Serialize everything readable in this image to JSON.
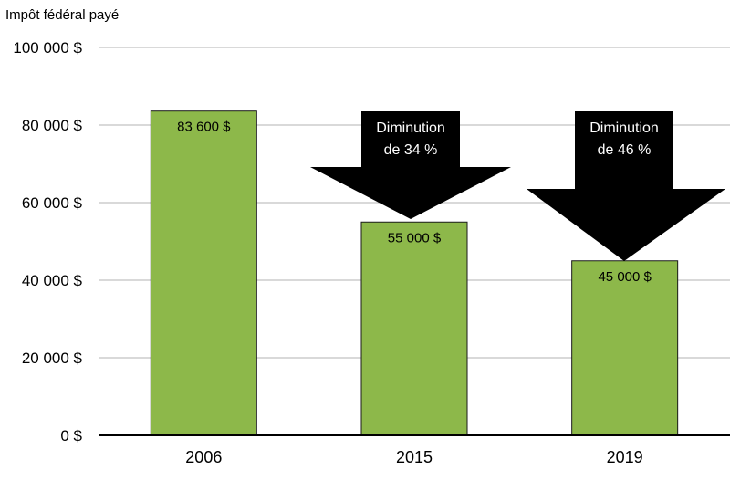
{
  "chart_data": {
    "type": "bar",
    "ylabel": "Impôt fédéral payé",
    "categories": [
      "2006",
      "2015",
      "2019"
    ],
    "values": [
      83600,
      55000,
      45000
    ],
    "data_labels": [
      "83 600 $",
      "55 000 $",
      "45 000 $"
    ],
    "ylim": [
      0,
      100000
    ],
    "yticks": [
      0,
      20000,
      40000,
      60000,
      80000,
      100000
    ],
    "ytick_labels": [
      "0 $",
      "20 000 $",
      "40 000 $",
      "60 000 $",
      "80 000 $",
      "100 000 $"
    ],
    "grid": true,
    "bar_color": "#8db84a",
    "annotations": [
      {
        "category": "2015",
        "lines": [
          "Diminution",
          "de 34 %"
        ]
      },
      {
        "category": "2019",
        "lines": [
          "Diminution",
          "de 46 %"
        ]
      }
    ]
  }
}
